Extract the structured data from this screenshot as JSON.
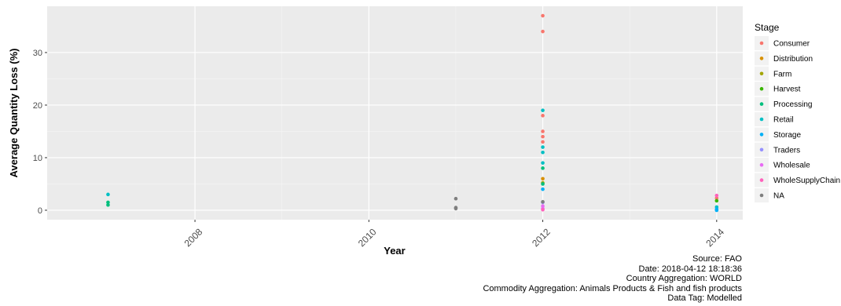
{
  "chart_data": {
    "type": "scatter",
    "xlabel": "Year",
    "ylabel": "Average Quantity Loss (%)",
    "xlim": [
      2006.3,
      2014.3
    ],
    "ylim": [
      -1.8,
      38.8
    ],
    "x_ticks": [
      {
        "value": 2008,
        "label": "2008"
      },
      {
        "value": 2010,
        "label": "2010"
      },
      {
        "value": 2012,
        "label": "2012"
      },
      {
        "value": 2014,
        "label": "2014"
      }
    ],
    "y_ticks": [
      {
        "value": 0,
        "label": "0"
      },
      {
        "value": 10,
        "label": "10"
      },
      {
        "value": 20,
        "label": "20"
      },
      {
        "value": 30,
        "label": "30"
      }
    ],
    "grid": true,
    "legend_title": "Stage",
    "legend_position": "right",
    "series": [
      {
        "name": "Consumer",
        "color": "#F8766D",
        "points": [
          [
            2012,
            37
          ],
          [
            2012,
            34
          ],
          [
            2012,
            18
          ],
          [
            2012,
            15
          ],
          [
            2012,
            14
          ],
          [
            2012,
            13
          ],
          [
            2014,
            2.3
          ]
        ]
      },
      {
        "name": "Distribution",
        "color": "#D89000",
        "points": [
          [
            2012,
            6
          ]
        ]
      },
      {
        "name": "Farm",
        "color": "#A3A500",
        "points": [
          [
            2012,
            5.2
          ]
        ]
      },
      {
        "name": "Harvest",
        "color": "#39B600",
        "points": [
          [
            2014,
            1.8
          ]
        ]
      },
      {
        "name": "Processing",
        "color": "#00BF7D",
        "points": [
          [
            2007,
            1.5
          ],
          [
            2007,
            1.0
          ],
          [
            2012,
            8
          ],
          [
            2012,
            5
          ]
        ]
      },
      {
        "name": "Retail",
        "color": "#00BFC4",
        "points": [
          [
            2007,
            3
          ],
          [
            2012,
            19
          ],
          [
            2012,
            12
          ],
          [
            2012,
            11
          ],
          [
            2012,
            9
          ],
          [
            2014,
            0.6
          ]
        ]
      },
      {
        "name": "Storage",
        "color": "#00B0F6",
        "points": [
          [
            2012,
            4
          ],
          [
            2014,
            0.2
          ],
          [
            2014,
            0
          ]
        ]
      },
      {
        "name": "Traders",
        "color": "#9590FF",
        "points": [
          [
            2012,
            1.5
          ]
        ]
      },
      {
        "name": "Wholesale",
        "color": "#E76BF3",
        "points": [
          [
            2012,
            0.8
          ],
          [
            2012,
            0.3
          ]
        ]
      },
      {
        "name": "WholeSupplyChain",
        "color": "#FF62BC",
        "points": [
          [
            2012,
            0.1
          ],
          [
            2014,
            2.8
          ]
        ]
      },
      {
        "name": "NA",
        "color": "#7F7F7F",
        "points": [
          [
            2011,
            2.2
          ],
          [
            2011,
            0.5
          ],
          [
            2011,
            0.3
          ],
          [
            2012,
            1.6
          ]
        ]
      }
    ]
  },
  "caption": {
    "source": "Source: FAO",
    "date": "Date: 2018-04-12 18:18:36",
    "country": "Country Aggregation: WORLD",
    "commodity": "Commodity Aggregation: Animals Products & Fish and fish products",
    "tag": "Data Tag: Modelled"
  }
}
